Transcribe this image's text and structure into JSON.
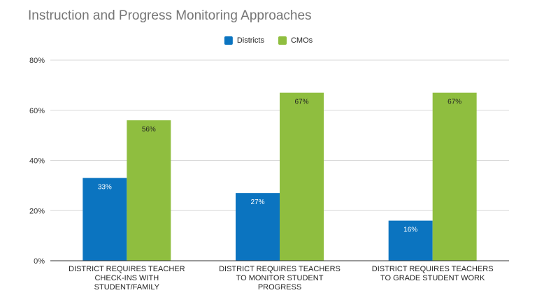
{
  "chart_data": {
    "type": "bar",
    "title": "Instruction and Progress Monitoring Approaches",
    "categories": [
      [
        "DISTRICT REQUIRES TEACHER",
        "CHECK-INS WITH",
        "STUDENT/FAMILY"
      ],
      [
        "DISTRICT REQUIRES TEACHERS",
        "TO MONITOR STUDENT",
        "PROGRESS"
      ],
      [
        "DISTRICT REQUIRES TEACHERS",
        "TO GRADE STUDENT WORK"
      ]
    ],
    "series": [
      {
        "name": "Districts",
        "color": "#0b74c0",
        "values": [
          33,
          27,
          16
        ],
        "labels": [
          "33%",
          "27%",
          "16%"
        ],
        "label_color": "#ffffff"
      },
      {
        "name": "CMOs",
        "color": "#8fbe3f",
        "values": [
          56,
          67,
          67
        ],
        "labels": [
          "56%",
          "67%",
          "67%"
        ],
        "label_color": "#222222"
      }
    ],
    "y_ticks": [
      0,
      20,
      40,
      60,
      80
    ],
    "y_tick_labels": [
      "0%",
      "20%",
      "40%",
      "60%",
      "80%"
    ],
    "ylim": [
      0,
      80
    ],
    "grid": true,
    "legend_position": "top-center",
    "gridline_color": "#d9d9d9",
    "axis_color": "#333333"
  }
}
